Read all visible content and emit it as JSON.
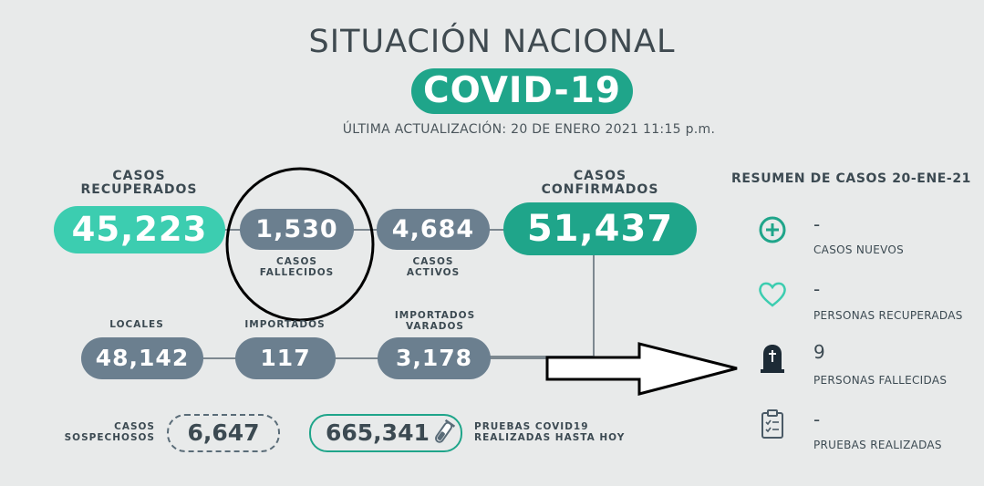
{
  "header": {
    "title": "SITUACIÓN NACIONAL",
    "badge": "COVID-19",
    "updated": "ÚLTIMA ACTUALIZACIÓN: 20 DE ENERO 2021 11:15 p.m."
  },
  "stats": {
    "recuperados": {
      "label_1": "CASOS",
      "label_2": "RECUPERADOS",
      "value": "45,223"
    },
    "fallecidos": {
      "label_1": "CASOS",
      "label_2": "FALLECIDOS",
      "value": "1,530"
    },
    "activos": {
      "label_1": "CASOS",
      "label_2": "ACTIVOS",
      "value": "4,684"
    },
    "confirmados": {
      "label_1": "CASOS",
      "label_2": "CONFIRMADOS",
      "value": "51,437"
    },
    "locales": {
      "label": "LOCALES",
      "value": "48,142"
    },
    "importados": {
      "label": "IMPORTADOS",
      "value": "117"
    },
    "varados": {
      "label_1": "IMPORTADOS",
      "label_2": "VARADOS",
      "value": "3,178"
    },
    "sospechosos": {
      "label_1": "CASOS",
      "label_2": "SOSPECHOSOS",
      "value": "6,647"
    },
    "pruebas": {
      "label_1": "PRUEBAS COVID19",
      "label_2": "REALIZADAS HASTA HOY",
      "value": "665,341"
    }
  },
  "summary": {
    "title": "RESUMEN DE CASOS 20-ENE-21",
    "items": [
      {
        "icon": "plus-circle-icon",
        "value": "-",
        "label": "CASOS NUEVOS"
      },
      {
        "icon": "heart-icon",
        "value": "-",
        "label": "PERSONAS RECUPERADAS"
      },
      {
        "icon": "tombstone-icon",
        "value": "9",
        "label": "PERSONAS FALLECIDAS"
      },
      {
        "icon": "clipboard-icon",
        "value": "-",
        "label": "PRUEBAS REALIZADAS"
      }
    ]
  },
  "colors": {
    "green": "#1fa58a",
    "light_green": "#3ccdb0",
    "slate": "#6b7f8f",
    "background": "#e8eaea"
  }
}
